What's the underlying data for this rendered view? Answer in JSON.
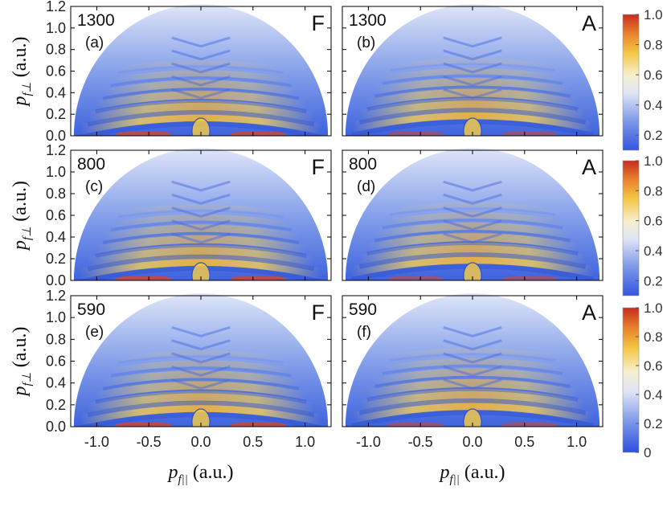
{
  "chart_data": {
    "type": "heatmap",
    "description_axes": {
      "xlabel": "p_{f||} (a.u.)",
      "ylabel": "p_{f⊥} (a.u.)"
    },
    "xlabel_parts": {
      "p": "p",
      "sub": "f||",
      "unit": " (a.u.)"
    },
    "ylabel_parts": {
      "p": "p",
      "sub": "f⊥",
      "unit": " (a.u.)"
    },
    "xlim": [
      -1.25,
      1.25
    ],
    "ylim": [
      0,
      1.2
    ],
    "xticks": [
      "-1.0",
      "-0.5",
      "0.0",
      "0.5",
      "1.0"
    ],
    "xtick_values": [
      -1.0,
      -0.5,
      0.0,
      0.5,
      1.0
    ],
    "yticks": [
      "0.0",
      "0.2",
      "0.4",
      "0.6",
      "0.8",
      "1.0",
      "1.2"
    ],
    "ytick_values": [
      0.0,
      0.2,
      0.4,
      0.6,
      0.8,
      1.0,
      1.2
    ],
    "domain_radius": 1.22,
    "colorbar": {
      "colors": [
        "#3b5bd9",
        "#7f9ae8",
        "#c9d5f2",
        "#f3eccb",
        "#f5c542",
        "#e87d2a",
        "#c8311f"
      ],
      "ticks_top_two": [
        "0.2",
        "0.4",
        "0.6",
        "0.8",
        "1.0"
      ],
      "tick_values_top_two": [
        0.2,
        0.4,
        0.6,
        0.8,
        1.0
      ],
      "ticks_bottom": [
        "0",
        "0.2",
        "0.4",
        "0.6",
        "0.8",
        "1.0"
      ],
      "tick_values_bottom": [
        0.0,
        0.2,
        0.4,
        0.6,
        0.8,
        1.0
      ]
    },
    "panels": [
      {
        "id": "a",
        "number": "1300",
        "letter": "(a)",
        "gauge": "F"
      },
      {
        "id": "b",
        "number": "1300",
        "letter": "(b)",
        "gauge": "A"
      },
      {
        "id": "c",
        "number": "800",
        "letter": "(c)",
        "gauge": "F"
      },
      {
        "id": "d",
        "number": "800",
        "letter": "(d)",
        "gauge": "A"
      },
      {
        "id": "e",
        "number": "590",
        "letter": "(e)",
        "gauge": "F"
      },
      {
        "id": "f",
        "number": "590",
        "letter": "(f)",
        "gauge": "A"
      }
    ]
  }
}
